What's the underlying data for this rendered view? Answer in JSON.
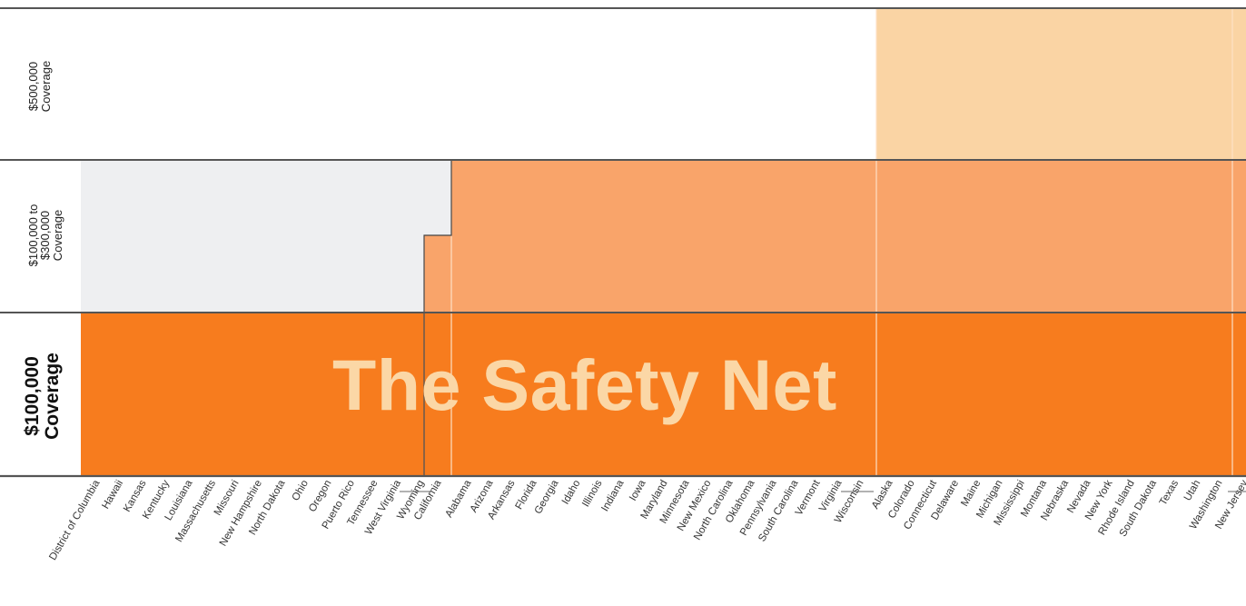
{
  "chart_data": {
    "type": "bar",
    "title": "The Safety Net",
    "y_categories": [
      {
        "lines": [
          "$500,000",
          "Coverage"
        ]
      },
      {
        "lines": [
          "$100,000 to",
          "$300,000",
          "Coverage"
        ]
      },
      {
        "lines": [
          "$100,000",
          "Coverage"
        ]
      }
    ],
    "groups": [
      {
        "max_level": "$100,000 to $300,000 (partial)",
        "states": [
          "District of Columbia",
          "Hawaii",
          "Kansas",
          "Kentucky",
          "Louisiana",
          "Massachusetts",
          "Missouri",
          "New Hampshire",
          "North Dakota",
          "Ohio",
          "Oregon",
          "Puerto Rico",
          "Tennessee",
          "West Virginia",
          "Wyoming"
        ]
      },
      {
        "max_level": "$100,000 to $300,000 (partial)",
        "states": [
          "California"
        ]
      },
      {
        "max_level": "$100,000 to $300,000",
        "states": [
          "Alabama",
          "Arizona",
          "Arkansas",
          "Florida",
          "Georgia",
          "Idaho",
          "Illinois",
          "Indiana",
          "Iowa",
          "Maryland",
          "Minnesota",
          "New Mexico",
          "North Carolina",
          "Oklahoma",
          "Pennsylvania",
          "South Carolina",
          "Vermont",
          "Virginia",
          "Wisconsin"
        ]
      },
      {
        "max_level": "$500,000",
        "states": [
          "Alaska",
          "Colorado",
          "Connecticut",
          "Delaware",
          "Maine",
          "Michigan",
          "Mississippi",
          "Montana",
          "Nebraska",
          "Nevada",
          "New York",
          "Rhode Island",
          "South Dakota",
          "Texas",
          "Utah",
          "Washington"
        ]
      },
      {
        "max_level": "$500,000",
        "states": [
          "New Jersey"
        ]
      }
    ],
    "colors": {
      "level1": "#f77c1e",
      "level2": "#f9a46a",
      "level3": "#fad4a4",
      "empty_level2": "#eeeff1",
      "title_color": "#fbd7a6"
    },
    "legend": "none",
    "grid": true
  }
}
